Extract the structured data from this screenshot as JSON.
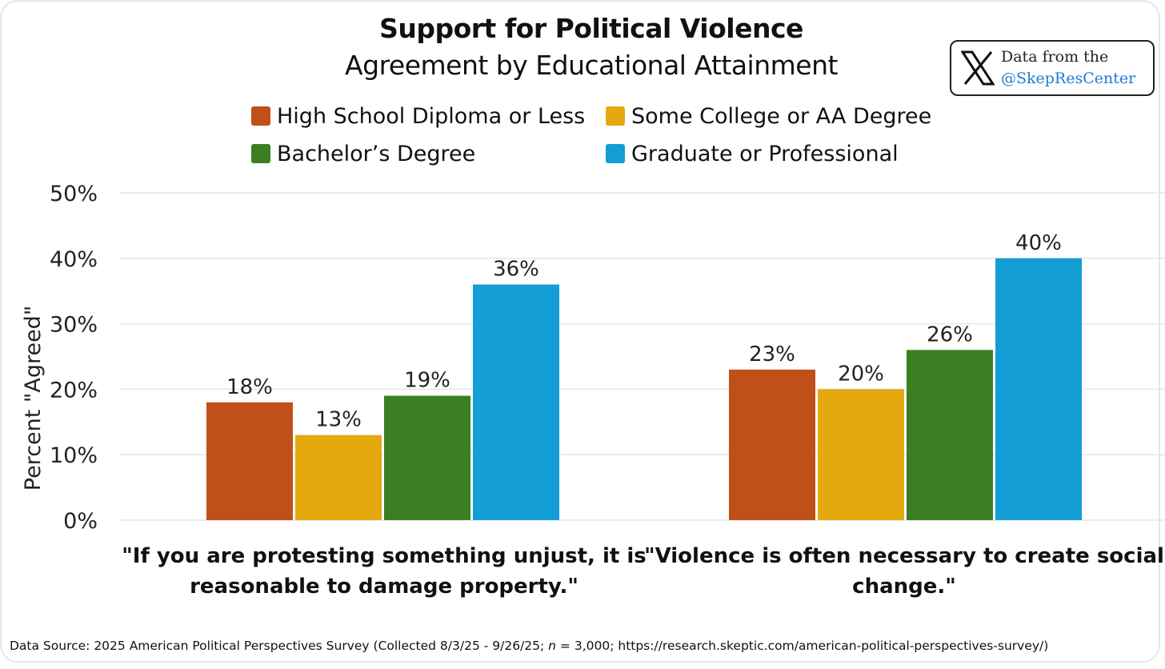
{
  "chart_data": {
    "type": "bar",
    "title": "Support for Political Violence",
    "subtitle": "Agreement by Educational Attainment",
    "ylabel": "Percent \"Agreed\"",
    "ylim": [
      0,
      50
    ],
    "yticks": [
      "0%",
      "10%",
      "20%",
      "30%",
      "40%",
      "50%"
    ],
    "grid": true,
    "legend_position": "top",
    "categories": [
      "\"If you are protesting something unjust, it is reasonable to damage property.\"",
      "\"Violence is often necessary to create social change.\""
    ],
    "series": [
      {
        "name": "High School Diploma or Less",
        "color": "#c0501a",
        "values": [
          18,
          23
        ],
        "labels": [
          "18%",
          "23%"
        ]
      },
      {
        "name": "Some College or AA Degree",
        "color": "#e3a90f",
        "values": [
          13,
          20
        ],
        "labels": [
          "13%",
          "20%"
        ]
      },
      {
        "name": "Bachelor’s Degree",
        "color": "#3b7f23",
        "values": [
          19,
          26
        ],
        "labels": [
          "19%",
          "26%"
        ]
      },
      {
        "name": "Graduate or Professional",
        "color": "#139ed6",
        "values": [
          36,
          40
        ],
        "labels": [
          "36%",
          "40%"
        ]
      }
    ]
  },
  "badge": {
    "icon": "x-logo-icon",
    "line1": "Data from the",
    "line2": "@SkepResCenter"
  },
  "category_lines": [
    [
      "\"If you are protesting something unjust, it is",
      "reasonable to damage property.\""
    ],
    [
      "\"Violence is often necessary to create social",
      "change.\""
    ]
  ],
  "source_prefix": "Data Source: 2025 American Political Perspectives Survey (Collected 8/3/25 - 9/26/25; ",
  "source_n": "n",
  "source_suffix": " = 3,000; https://research.skeptic.com/american-political-perspectives-survey/)"
}
